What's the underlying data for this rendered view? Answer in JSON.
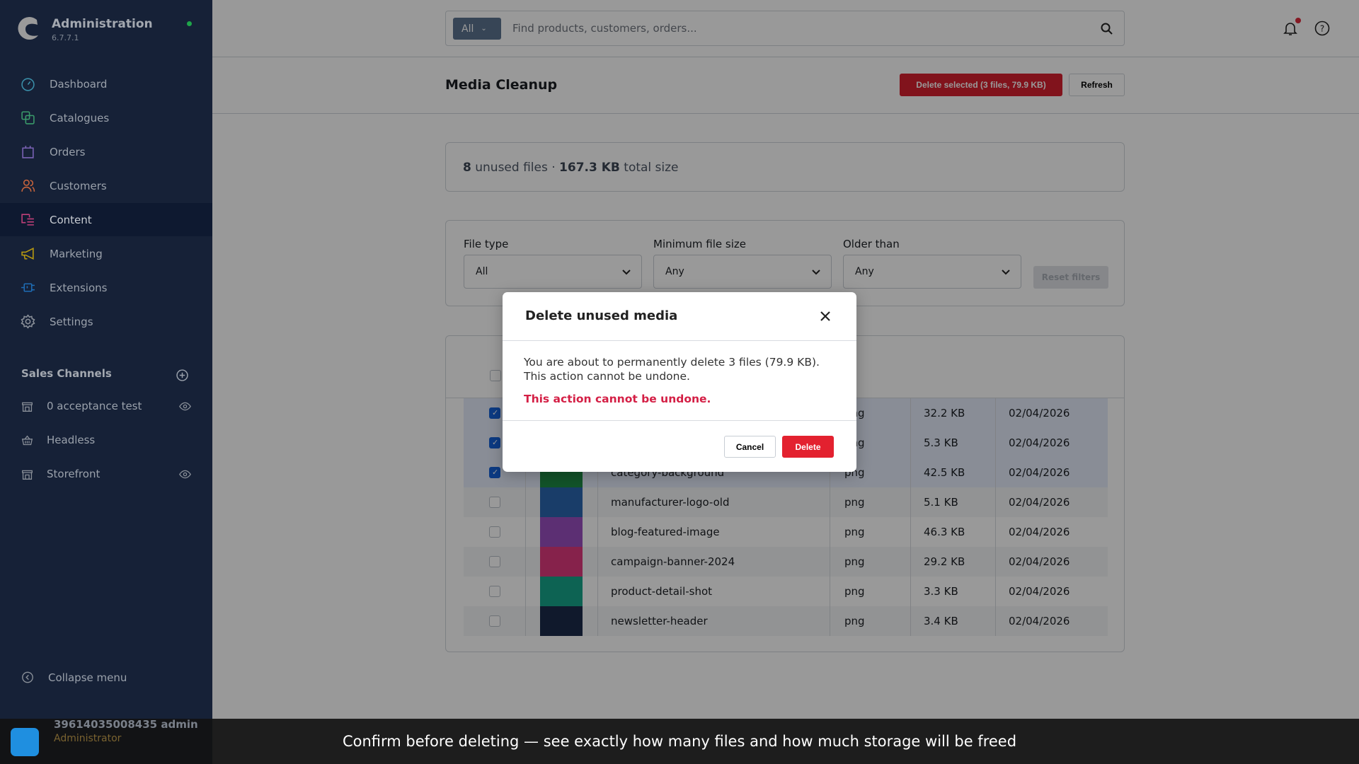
{
  "app": {
    "title": "Administration",
    "version": "6.7.7.1",
    "status_color": "#1fa54a"
  },
  "sidebar": {
    "items": [
      {
        "label": "Dashboard",
        "icon": "gauge-icon",
        "color": "#3a8ea8"
      },
      {
        "label": "Catalogues",
        "icon": "copy-icon",
        "color": "#3a9a6a"
      },
      {
        "label": "Orders",
        "icon": "bag-icon",
        "color": "#7a62b6"
      },
      {
        "label": "Customers",
        "icon": "users-icon",
        "color": "#c8643c"
      },
      {
        "label": "Content",
        "icon": "content-icon",
        "color": "#c04079",
        "active": true
      },
      {
        "label": "Marketing",
        "icon": "megaphone-icon",
        "color": "#b89a10"
      },
      {
        "label": "Extensions",
        "icon": "plug-icon",
        "color": "#1e6cb4"
      },
      {
        "label": "Settings",
        "icon": "gear-icon",
        "color": "#8a9099"
      }
    ],
    "sales_channels_heading": "Sales Channels",
    "sales_channels": [
      {
        "label": "0 acceptance test",
        "icon": "storefront-icon",
        "eye": true
      },
      {
        "label": "Headless",
        "icon": "basket-icon",
        "eye": false
      },
      {
        "label": "Storefront",
        "icon": "storefront-icon",
        "eye": true
      }
    ],
    "collapse_label": "Collapse menu",
    "user": {
      "name": "39614035008435 admin",
      "role": "Administrator"
    }
  },
  "search": {
    "scope": "All",
    "placeholder": "Find products, customers, orders..."
  },
  "page": {
    "title": "Media Cleanup",
    "delete_selected_label": "Delete selected (3 files, 79.9 KB)",
    "refresh_label": "Refresh"
  },
  "summary": {
    "count": "8",
    "count_text": " unused files · ",
    "size": "167.3 KB",
    "size_text": " total size"
  },
  "filters": {
    "file_type": {
      "label": "File type",
      "value": "All"
    },
    "min_size": {
      "label": "Minimum file size",
      "value": "Any"
    },
    "older_than": {
      "label": "Older than",
      "value": "Any"
    },
    "reset_label": "Reset filters"
  },
  "table": {
    "rows": [
      {
        "checked": true,
        "name": "",
        "type": "png",
        "size": "32.2 KB",
        "date": "02/04/2026",
        "thumb": "#2d6a9f"
      },
      {
        "checked": true,
        "name": "",
        "type": "png",
        "size": "5.3 KB",
        "date": "02/04/2026",
        "thumb": "#6a4fa0"
      },
      {
        "checked": true,
        "name": "category-background",
        "type": "png",
        "size": "42.5 KB",
        "date": "02/04/2026",
        "thumb": "#1f8a45"
      },
      {
        "checked": false,
        "name": "manufacturer-logo-old",
        "type": "png",
        "size": "5.1 KB",
        "date": "02/04/2026",
        "thumb": "#2a66b0"
      },
      {
        "checked": false,
        "name": "blog-featured-image",
        "type": "png",
        "size": "46.3 KB",
        "date": "02/04/2026",
        "thumb": "#9a4fc0"
      },
      {
        "checked": false,
        "name": "campaign-banner-2024",
        "type": "png",
        "size": "29.2 KB",
        "date": "02/04/2026",
        "thumb": "#e03a7e"
      },
      {
        "checked": false,
        "name": "product-detail-shot",
        "type": "png",
        "size": "3.3 KB",
        "date": "02/04/2026",
        "thumb": "#16a58a"
      },
      {
        "checked": false,
        "name": "newsletter-header",
        "type": "png",
        "size": "3.4 KB",
        "date": "02/04/2026",
        "thumb": "#1c2a4a"
      }
    ]
  },
  "modal": {
    "title": "Delete unused media",
    "message": "You are about to permanently delete 3 files (79.9 KB). This action cannot be undone.",
    "warning": "This action cannot be undone.",
    "cancel_label": "Cancel",
    "delete_label": "Delete"
  },
  "caption": "Confirm before deleting — see exactly how many files and how much storage will be freed"
}
